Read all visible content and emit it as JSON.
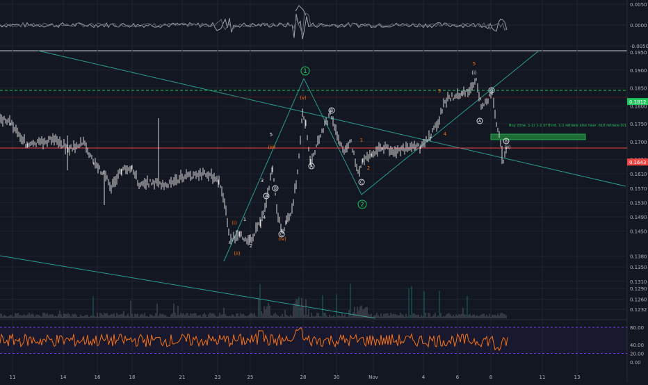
{
  "colors": {
    "background": "#131722",
    "grid": "#1f2433",
    "candle": "#d9d9d9",
    "volume": "#8a8f99",
    "volume_spike": "#26a69a",
    "teal_line": "#2a9d8f",
    "green_label": "#22c55e",
    "orange_label": "#f97316",
    "white_label": "#e5e7eb",
    "resistance_dash": "#22c55e",
    "support_line": "#ef4444",
    "rsi_line": "#f97316",
    "rsi_band": "#7c3aed",
    "buy_zone": "#1e6b35",
    "osc_line": "#9ca3af",
    "price_tag_green": "#22c55e",
    "price_tag_red": "#ef4444"
  },
  "chart_data": [
    {
      "type": "line",
      "pane": "oscillator",
      "y_ticks": [
        "0.0050",
        "0.0000",
        "-0.0050"
      ],
      "ylim": [
        -0.0075,
        0.0075
      ]
    },
    {
      "type": "candlestick",
      "pane": "price",
      "x_ticks": [
        "11",
        "14",
        "16",
        "18",
        "21",
        "23",
        "25",
        "28",
        "30",
        "Nov",
        "4",
        "6",
        "8",
        "11",
        "13"
      ],
      "y_ticks": [
        "0.1950",
        "0.1900",
        "0.1850",
        "0.1800",
        "0.1750",
        "0.1700",
        "0.1650",
        "0.1610",
        "0.1570",
        "0.1530",
        "0.1490",
        "0.1450",
        "0.1380",
        "0.1350",
        "0.1310",
        "0.1290",
        "0.1260",
        "0.1232"
      ],
      "ylim": [
        0.123,
        0.195
      ],
      "price_markers": [
        {
          "label": "0.1812",
          "kind": "resistance"
        },
        {
          "label": "0.1643",
          "kind": "current"
        }
      ],
      "wave_labels_circled_large": [
        "1",
        "2"
      ],
      "wave_labels_orange": [
        "(i)",
        "(ii)",
        "(iii)",
        "(iv)",
        "(v)",
        "1",
        "2",
        "3",
        "4",
        "5"
      ],
      "wave_labels_white": [
        "1",
        "2",
        "3",
        "4",
        "5",
        "(i)",
        "(ii)"
      ],
      "wave_labels_circled_small": [
        "A",
        "B",
        "C",
        "A",
        "B",
        "C",
        "A",
        "B",
        "B"
      ],
      "annotation": "Buy zone. 1-2/ 1-2 of third. 1:1 retrace also near .618 retrace 0/1"
    },
    {
      "type": "line",
      "pane": "rsi",
      "y_ticks": [
        "80.00",
        "40.00",
        "20.00",
        "0.00"
      ],
      "ylim": [
        0,
        100
      ],
      "bands": [
        80,
        20
      ]
    }
  ]
}
